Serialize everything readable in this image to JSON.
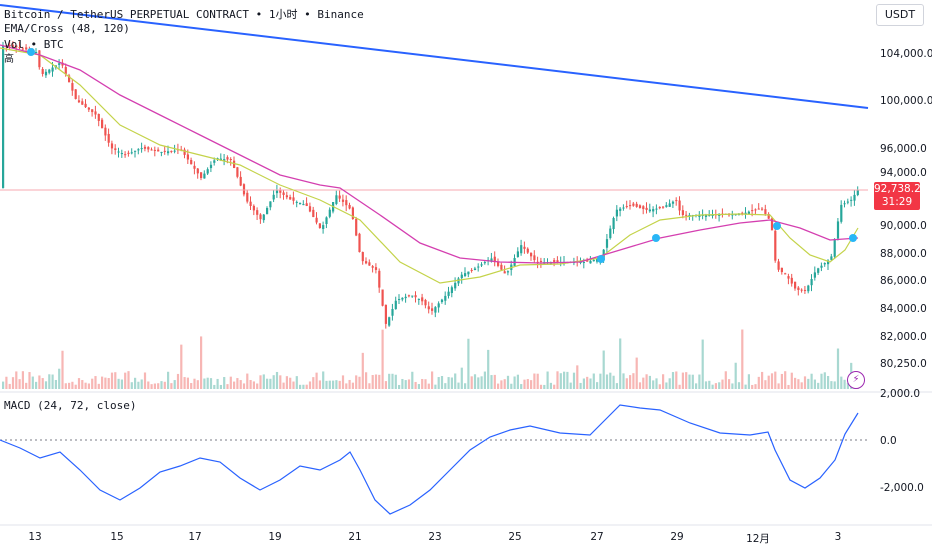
{
  "header": {
    "symbol_line": "Bitcoin / TetherUS PERPETUAL CONTRACT • 1小时 • Binance",
    "indicator_ema": "EMA/Cross (48, 120)",
    "indicator_vol": "Vol • BTC",
    "extra_label": "高"
  },
  "unit_button": "USDT",
  "price_axis": {
    "labels": [
      "104,000.0",
      "100,000.0",
      "96,000.0",
      "94,000.0",
      "90,000.0",
      "88,000.0",
      "86,000.0",
      "84,000.0",
      "82,000.0",
      "80,250.0",
      "2,000.0",
      "0.0",
      "-2,000.0"
    ],
    "current_price": "92,738.2",
    "countdown": "31:29"
  },
  "macd": {
    "label": "MACD (24, 72, close)"
  },
  "time_axis": {
    "labels": [
      "13",
      "15",
      "17",
      "19",
      "21",
      "23",
      "25",
      "27",
      "29",
      "12月",
      "3"
    ]
  },
  "colors": {
    "up": "#26a69a",
    "down": "#ef5350",
    "ema_fast": "#c4d34a",
    "ema_slow": "#d43fb0",
    "trendline": "#2962ff",
    "macd_line": "#2962ff",
    "price_tag": "#f23645"
  },
  "icons": [
    "flash-icon",
    "cross-marker-icon"
  ]
}
